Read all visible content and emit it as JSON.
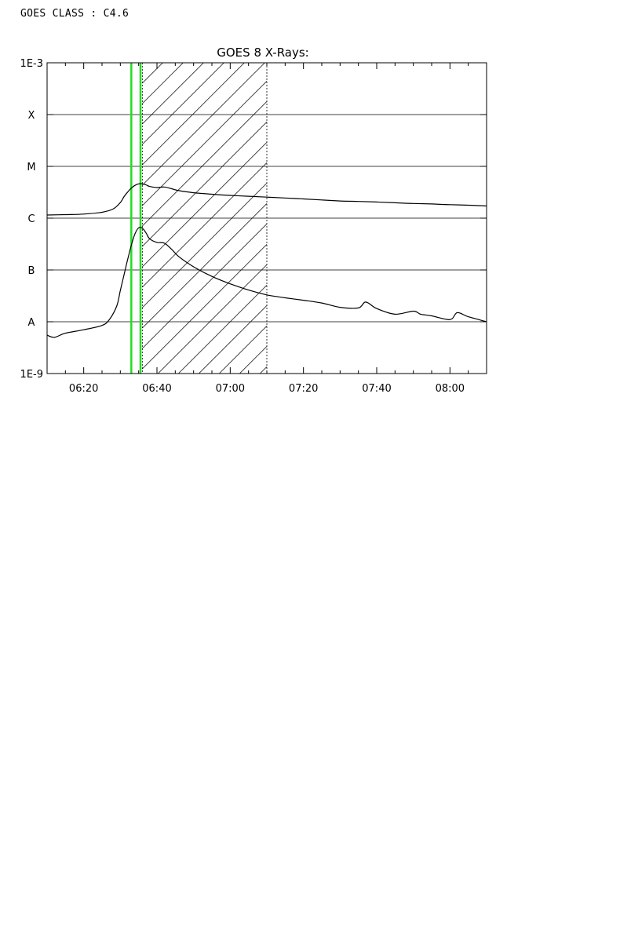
{
  "header": {
    "goes_class_label": "GOES CLASS : C4.6"
  },
  "chart_data": {
    "type": "line",
    "title": "GOES 8 X-Rays:",
    "xlabel": "",
    "ylabel": "",
    "y_scale": "log",
    "x_range": [
      "06:10",
      "08:10"
    ],
    "ylim": [
      "1E-9",
      "1E-3"
    ],
    "x_ticks": [
      "06:20",
      "06:40",
      "07:00",
      "07:20",
      "07:40",
      "08:00"
    ],
    "y_ticks": [
      {
        "label": "1E-3",
        "exp": -3
      },
      {
        "label": "X",
        "exp": -4
      },
      {
        "label": "M",
        "exp": -5
      },
      {
        "label": "C",
        "exp": -6
      },
      {
        "label": "B",
        "exp": -7
      },
      {
        "label": "A",
        "exp": -8
      },
      {
        "label": "1E-9",
        "exp": -9
      }
    ],
    "grid_levels": [
      "X",
      "M",
      "C",
      "B",
      "A"
    ],
    "markers": {
      "green_lines": [
        "06:33",
        "06:35:30"
      ],
      "dotted_lines": [
        "06:36",
        "07:10"
      ],
      "hatched_range": [
        "06:36",
        "07:10"
      ]
    },
    "colors": {
      "curve": "#000000",
      "marker": "#22dd22",
      "grid": "#000000"
    },
    "series": [
      {
        "x": [
          "06:10",
          "06:15",
          "06:20",
          "06:25",
          "06:28",
          "06:30",
          "06:31",
          "06:32",
          "06:33",
          "06:34",
          "06:35",
          "06:36",
          "06:37",
          "06:38",
          "06:40",
          "06:42",
          "06:44",
          "06:46",
          "06:50",
          "06:55",
          "07:00",
          "07:05",
          "07:10",
          "07:15",
          "07:20",
          "07:25",
          "07:30",
          "07:35",
          "07:40",
          "07:45",
          "07:50",
          "07:55",
          "08:00",
          "08:05",
          "08:10"
        ],
        "y": [
          1.15e-06,
          1.17e-06,
          1.2e-06,
          1.3e-06,
          1.5e-06,
          2e-06,
          2.6e-06,
          3.2e-06,
          3.8e-06,
          4.3e-06,
          4.6e-06,
          4.6e-06,
          4.4e-06,
          4.1e-06,
          3.9e-06,
          4e-06,
          3.7e-06,
          3.4e-06,
          3.1e-06,
          2.9e-06,
          2.75e-06,
          2.65e-06,
          2.55e-06,
          2.45e-06,
          2.35e-06,
          2.25e-06,
          2.15e-06,
          2.1e-06,
          2.05e-06,
          1.98e-06,
          1.92e-06,
          1.88e-06,
          1.82e-06,
          1.78e-06,
          1.72e-06
        ]
      },
      {
        "x": [
          "06:10",
          "06:12",
          "06:15",
          "06:20",
          "06:25",
          "06:27",
          "06:29",
          "06:30",
          "06:31",
          "06:32",
          "06:33",
          "06:34",
          "06:35",
          "06:36",
          "06:37",
          "06:38",
          "06:40",
          "06:42",
          "06:44",
          "06:46",
          "06:50",
          "06:55",
          "07:00",
          "07:05",
          "07:10",
          "07:15",
          "07:20",
          "07:25",
          "07:30",
          "07:35",
          "07:37",
          "07:40",
          "07:45",
          "07:50",
          "07:52",
          "07:55",
          "08:00",
          "08:02",
          "08:05",
          "08:10"
        ],
        "y": [
          5.5e-09,
          5e-09,
          6e-09,
          7e-09,
          8.5e-09,
          1.1e-08,
          2e-08,
          4e-08,
          8e-08,
          1.6e-07,
          3e-07,
          5e-07,
          6.5e-07,
          6.4e-07,
          5.2e-07,
          4e-07,
          3.4e-07,
          3.3e-07,
          2.5e-07,
          1.8e-07,
          1.15e-07,
          7.5e-08,
          5.4e-08,
          4.1e-08,
          3.3e-08,
          2.9e-08,
          2.6e-08,
          2.3e-08,
          1.9e-08,
          1.85e-08,
          2.4e-08,
          1.8e-08,
          1.4e-08,
          1.6e-08,
          1.4e-08,
          1.3e-08,
          1.1e-08,
          1.5e-08,
          1.25e-08,
          1e-08
        ]
      }
    ]
  }
}
